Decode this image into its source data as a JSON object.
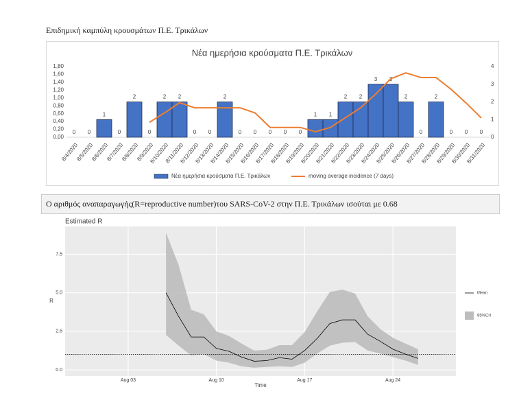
{
  "heading": "Επιδημική καμπύλη κρουσμάτων Π.Ε. Τρικάλων",
  "note": "Ο αριθμός αναπαραγωγής(R=reproductive number)του SARS-CoV-2 στην Π.Ε. Τρικάλων ισούται με 0.68",
  "chart_data": [
    {
      "type": "bar",
      "title": "Νέα ημερήσια κρούσματα Π.Ε. Τρικάλων",
      "categories": [
        "8/4/2020",
        "8/5/2020",
        "8/6/2020",
        "8/7/2020",
        "8/8/2020",
        "8/9/2020",
        "8/10/2020",
        "8/11/2020",
        "8/12/2020",
        "8/13/2020",
        "8/14/2020",
        "8/15/2020",
        "8/16/2020",
        "8/17/2020",
        "8/18/2020",
        "8/19/2020",
        "8/20/2020",
        "8/21/2020",
        "8/22/2020",
        "8/23/2020",
        "8/24/2020",
        "8/25/2020",
        "8/26/2020",
        "8/27/2020",
        "8/28/2020",
        "8/29/2020",
        "8/30/2020",
        "8/31/2020"
      ],
      "series": [
        {
          "name": "Νέα ημερήσια κρούσματα Π.Ε. Τρικάλων",
          "type": "bar",
          "color": "#4472c4",
          "axis": "y2",
          "values": [
            0,
            0,
            1,
            0,
            2,
            0,
            2,
            2,
            0,
            0,
            2,
            0,
            0,
            0,
            0,
            0,
            1,
            1,
            2,
            2,
            3,
            3,
            2,
            0,
            2,
            0,
            0,
            0
          ]
        },
        {
          "name": "moving average incidence (7 days)",
          "type": "line",
          "color": "#ed7d31",
          "axis": "y",
          "values": [
            null,
            null,
            null,
            null,
            null,
            0.38,
            0.62,
            0.88,
            0.75,
            0.75,
            0.75,
            0.75,
            0.62,
            0.25,
            0.25,
            0.25,
            0.14,
            0.25,
            0.5,
            0.75,
            1.1,
            1.49,
            1.64,
            1.52,
            1.52,
            1.22,
            0.87,
            0.49
          ]
        }
      ],
      "ylim": [
        0,
        1.8
      ],
      "yticks": [
        {
          "value": 0,
          "label": "0,00"
        },
        {
          "value": 0.2,
          "label": "0,20"
        },
        {
          "value": 0.4,
          "label": "0,40"
        },
        {
          "value": 0.6,
          "label": "0,60"
        },
        {
          "value": 0.8,
          "label": "0,80"
        },
        {
          "value": 1,
          "label": "1,00"
        },
        {
          "value": 1.2,
          "label": "1,20"
        },
        {
          "value": 1.4,
          "label": "1,40"
        },
        {
          "value": 1.6,
          "label": "1,60"
        },
        {
          "value": 1.8,
          "label": "1,80"
        }
      ],
      "y2lim": [
        0,
        4
      ],
      "y2ticks": [
        0,
        1,
        2,
        3,
        4
      ],
      "legend": "bottom"
    },
    {
      "type": "line",
      "title": "Estimated R",
      "xlabel": "Time",
      "ylabel": "R",
      "x": [
        "Aug 06",
        "Aug 07",
        "Aug 08",
        "Aug 09",
        "Aug 10",
        "Aug 11",
        "Aug 12",
        "Aug 13",
        "Aug 14",
        "Aug 15",
        "Aug 16",
        "Aug 17",
        "Aug 18",
        "Aug 19",
        "Aug 20",
        "Aug 21",
        "Aug 22",
        "Aug 23",
        "Aug 24",
        "Aug 25",
        "Aug 26"
      ],
      "series": [
        {
          "name": "Mean",
          "color": "#000000",
          "values": [
            5.0,
            3.47,
            2.13,
            2.13,
            1.39,
            1.2,
            0.83,
            0.56,
            0.6,
            0.79,
            0.69,
            1.25,
            2.04,
            3.0,
            3.24,
            3.24,
            2.31,
            1.85,
            1.34,
            1.02,
            0.74
          ]
        },
        {
          "name": "95%CrI",
          "color": "#bdbdbd",
          "upper": [
            8.9,
            6.8,
            3.9,
            3.6,
            2.5,
            2.2,
            1.7,
            1.25,
            1.3,
            1.6,
            1.6,
            2.45,
            3.8,
            5.05,
            5.2,
            4.95,
            3.47,
            2.64,
            2.08,
            1.7,
            1.34
          ],
          "lower": [
            2.27,
            1.57,
            0.93,
            1.02,
            0.6,
            0.46,
            0.23,
            0.14,
            0.19,
            0.23,
            0.19,
            0.46,
            1.06,
            1.57,
            1.76,
            1.8,
            1.25,
            1.06,
            0.83,
            0.6,
            0.32
          ]
        }
      ],
      "hline": 1,
      "xlim": [
        "Jul 29",
        "Aug 29"
      ],
      "xticks": [
        "Aug 03",
        "Aug 10",
        "Aug 17",
        "Aug 24"
      ],
      "ylim": [
        -0.4,
        9.3
      ],
      "yticks": [
        {
          "value": 0,
          "label": "0.0"
        },
        {
          "value": 2.5,
          "label": "2.5"
        },
        {
          "value": 5,
          "label": "5.0"
        },
        {
          "value": 7.5,
          "label": "7.5"
        }
      ],
      "grid": true,
      "legend": "right"
    }
  ]
}
